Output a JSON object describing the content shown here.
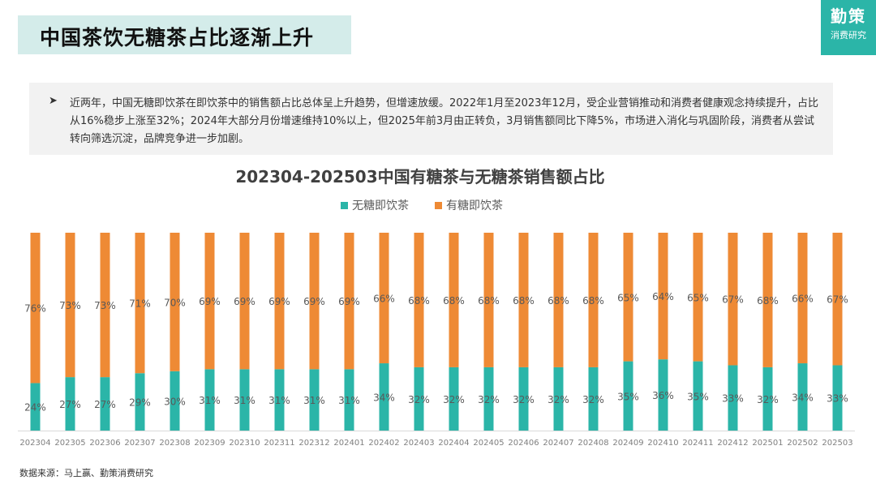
{
  "header": {
    "title": "中国茶饮无糖茶占比逐渐上升"
  },
  "logo": {
    "main": "勤策",
    "sub": "消费研究",
    "color": "#2bb5a8"
  },
  "summary": {
    "bullet_icon": "arrow-bullet-icon",
    "text": "近两年，中国无糖即饮茶在即饮茶中的销售额占比总体呈上升趋势，但增速放缓。2022年1月至2023年12月，受企业营销推动和消费者健康观念持续提升，占比从16%稳步上涨至32%；2024年大部分月份增速维持10%以上，但2025年前3月由正转负，3月销售额同比下降5%，市场进入消化与巩固阶段，消费者从尝试转向筛选沉淀，品牌竞争进一步加剧。"
  },
  "chart_data": {
    "type": "bar",
    "stacked": true,
    "title": "202304-202503中国有糖茶与无糖茶销售额占比",
    "legend_position": "top-center",
    "categories": [
      "202304",
      "202305",
      "202306",
      "202307",
      "202308",
      "202309",
      "202310",
      "202311",
      "202312",
      "202401",
      "202402",
      "202403",
      "202404",
      "202405",
      "202406",
      "202407",
      "202408",
      "202409",
      "202410",
      "202411",
      "202412",
      "202501",
      "202502",
      "202503"
    ],
    "series": [
      {
        "name": "无糖即饮茶",
        "color": "#2bb5a8",
        "values": [
          24,
          27,
          27,
          29,
          30,
          31,
          31,
          31,
          31,
          31,
          34,
          32,
          32,
          32,
          32,
          32,
          32,
          35,
          36,
          35,
          33,
          32,
          34,
          33
        ]
      },
      {
        "name": "有糖即饮茶",
        "color": "#ee8a35",
        "values": [
          76,
          73,
          73,
          71,
          70,
          69,
          69,
          69,
          69,
          69,
          66,
          68,
          68,
          68,
          68,
          68,
          68,
          65,
          64,
          65,
          67,
          68,
          66,
          67
        ]
      }
    ],
    "value_suffix": "%",
    "ylim": [
      0,
      100
    ]
  },
  "footer": {
    "source": "数据来源：马上赢、勤策消费研究"
  }
}
